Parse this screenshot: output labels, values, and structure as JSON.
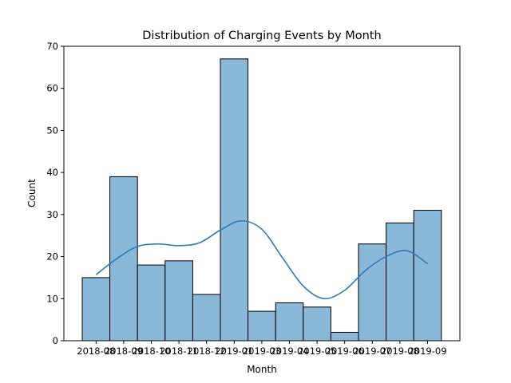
{
  "chart_data": {
    "type": "bar",
    "title": "Distribution of Charging Events by Month",
    "xlabel": "Month",
    "ylabel": "Count",
    "ylim": [
      0,
      70
    ],
    "y_ticks": [
      0,
      10,
      20,
      30,
      40,
      50,
      60,
      70
    ],
    "categories": [
      "2018-08",
      "2018-09",
      "2018-10",
      "2018-11",
      "2018-12",
      "2019-01",
      "2019-03",
      "2019-04",
      "2019-05",
      "2019-06",
      "2019-07",
      "2019-08",
      "2019-09"
    ],
    "values": [
      15,
      39,
      18,
      19,
      11,
      67,
      7,
      9,
      8,
      2,
      23,
      28,
      31
    ],
    "kde": [
      15.7,
      19.5,
      22.4,
      23.0,
      22.6,
      23.3,
      26.3,
      28.5,
      26.5,
      19.7,
      13.0,
      10.0,
      12.0,
      16.7,
      20.0,
      21.4,
      18.3
    ],
    "grid": false,
    "bar_color": "#8ab8d9",
    "bar_edge_color": "#000000",
    "kde_color": "#2d7ab7"
  }
}
